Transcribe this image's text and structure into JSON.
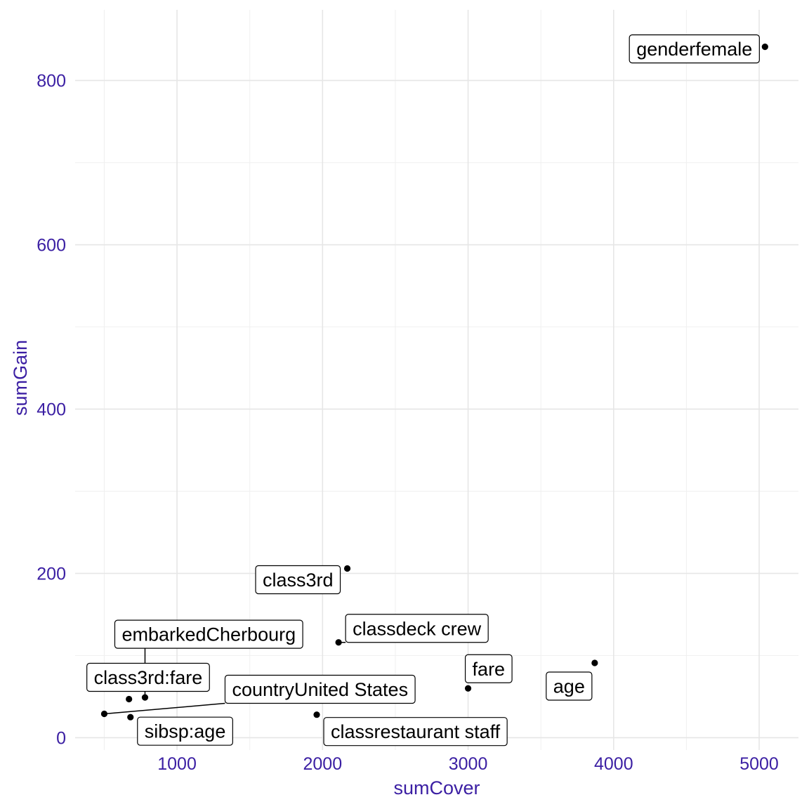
{
  "chart_data": {
    "type": "scatter",
    "title": "",
    "xlabel": "sumCover",
    "ylabel": "sumGain",
    "xlim": [
      300,
      5270
    ],
    "ylim": [
      -15,
      886
    ],
    "x_major_ticks": [
      1000,
      2000,
      3000,
      4000,
      5000
    ],
    "x_minor_ticks": [
      500,
      1500,
      2500,
      3500,
      4500
    ],
    "y_major_ticks": [
      0,
      200,
      400,
      600,
      800
    ],
    "y_minor_ticks": [
      100,
      300,
      500,
      700
    ],
    "grid": true,
    "legend": "none",
    "colors": {
      "axis_text": "#3b1fa3",
      "points": "#000000",
      "grid": "#e6e6e6"
    },
    "points": [
      {
        "label": "genderfemale",
        "x": 5040,
        "y": 841
      },
      {
        "label": "class3rd",
        "x": 2170,
        "y": 206
      },
      {
        "label": "classdeck crew",
        "x": 2110,
        "y": 116
      },
      {
        "label": "age",
        "x": 3870,
        "y": 91
      },
      {
        "label": "fare",
        "x": 3000,
        "y": 60
      },
      {
        "label": "embarkedCherbourg",
        "x": 780,
        "y": 49
      },
      {
        "label": "class3rd:fare",
        "x": 670,
        "y": 47
      },
      {
        "label": "countryUnited States",
        "x": 500,
        "y": 29
      },
      {
        "label": "classrestaurant staff",
        "x": 1960,
        "y": 28
      },
      {
        "label": "sibsp:age",
        "x": 680,
        "y": 25
      }
    ],
    "label_layout": [
      {
        "label": "genderfemale",
        "anchor": "left",
        "dx": -8,
        "dy": 3,
        "leader": false
      },
      {
        "label": "class3rd",
        "anchor": "left",
        "dx": -10,
        "dy": 16,
        "leader": false
      },
      {
        "label": "classdeck crew",
        "anchor": "right",
        "dx": 10,
        "dy": -20,
        "leader": true
      },
      {
        "label": "age",
        "anchor": "left",
        "dx": -4,
        "dy": 33,
        "leader": false
      },
      {
        "label": "fare",
        "anchor": "right",
        "dx": -4,
        "dy": -28,
        "leader": false
      },
      {
        "label": "embarkedCherbourg",
        "anchor": "right",
        "dx": -43,
        "dy": -90,
        "leader": true
      },
      {
        "label": "class3rd:fare",
        "anchor": "right",
        "dx": -60,
        "dy": -31,
        "leader": false
      },
      {
        "label": "countryUnited States",
        "anchor": "right",
        "dx": 172,
        "dy": -35,
        "leader": true
      },
      {
        "label": "classrestaurant staff",
        "anchor": "right",
        "dx": 10,
        "dy": 24,
        "leader": false
      },
      {
        "label": "sibsp:age",
        "anchor": "right",
        "dx": 10,
        "dy": 20,
        "leader": false
      }
    ]
  }
}
